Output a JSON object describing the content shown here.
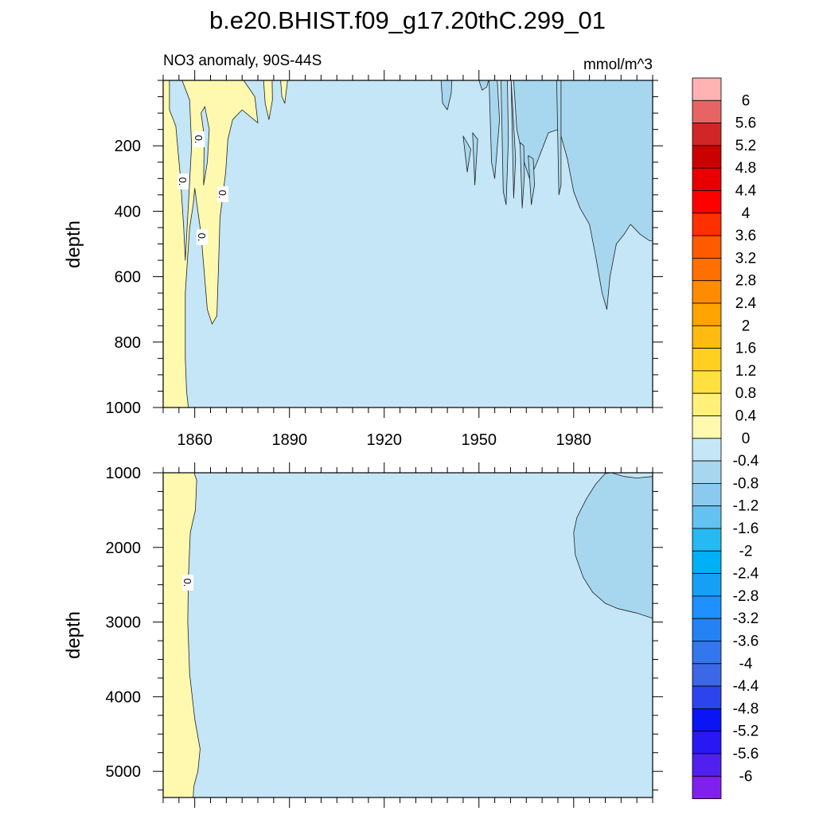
{
  "figure": {
    "title": "b.e20.BHIST.f09_g17.20thC.299_01"
  },
  "chart_data": [
    {
      "type": "heatmap",
      "panel": "upper",
      "title": "NO3 anomaly, 90S-44S",
      "units": "mmol/m^3",
      "ylabel": "depth",
      "xlabel": "",
      "xlim": [
        1850,
        2005
      ],
      "ylim": [
        1000,
        0
      ],
      "y_reversed": true,
      "x_ticks": [
        1860,
        1890,
        1920,
        1950,
        1980
      ],
      "x_tick_labels": [
        "1860",
        "1890",
        "1920",
        "1950",
        "1980"
      ],
      "y_ticks": [
        200,
        400,
        600,
        800,
        1000
      ],
      "y_tick_labels": [
        "200",
        "400",
        "600",
        "800",
        "1000"
      ],
      "contour_labels": [
        "0.",
        "0.",
        "0.",
        "0."
      ],
      "regions": [
        {
          "range": "0 to 0.4",
          "color": "#fff9b0",
          "points": [
            [
              1850,
              0
            ],
            [
              1850,
              1000
            ],
            [
              1858,
              1000
            ],
            [
              1857.4,
              950
            ],
            [
              1857,
              850
            ],
            [
              1857,
              750
            ],
            [
              1857,
              650
            ],
            [
              1857.6,
              560
            ],
            [
              1858.4,
              450
            ],
            [
              1859.5,
              380
            ],
            [
              1860,
              330
            ],
            [
              1862,
              470
            ],
            [
              1864,
              700
            ],
            [
              1865.5,
              745
            ],
            [
              1867,
              720
            ],
            [
              1867.5,
              580
            ],
            [
              1868,
              420
            ],
            [
              1869.8,
              280
            ],
            [
              1870.5,
              180
            ],
            [
              1872,
              120
            ],
            [
              1875,
              90
            ],
            [
              1880,
              130
            ],
            [
              1879,
              50
            ],
            [
              1875.5,
              0
            ]
          ]
        },
        {
          "range": "0 to 0.4",
          "color": "#fff9b0",
          "points": [
            [
              1881.8,
              0
            ],
            [
              1882.3,
              70
            ],
            [
              1883.5,
              120
            ],
            [
              1884.6,
              60
            ],
            [
              1884.5,
              0
            ]
          ]
        },
        {
          "range": "0 to 0.4",
          "color": "#fff9b0",
          "points": [
            [
              1887.2,
              0
            ],
            [
              1887.6,
              50
            ],
            [
              1888.5,
              70
            ],
            [
              1889.4,
              0
            ]
          ]
        },
        {
          "range": "0 to -0.4",
          "color": "#c4e6f6",
          "points": [
            [
              1852,
              0
            ],
            [
              1852,
              90
            ],
            [
              1854,
              140
            ],
            [
              1855.5,
              300
            ],
            [
              1856.5,
              450
            ],
            [
              1857,
              550
            ],
            [
              1858,
              380
            ],
            [
              1859,
              200
            ],
            [
              1858.4,
              60
            ],
            [
              1856,
              0
            ]
          ]
        },
        {
          "range": "0 to -0.4",
          "color": "#c4e6f6",
          "points": [
            [
              1862,
              100
            ],
            [
              1863,
              170
            ],
            [
              1862.8,
              320
            ],
            [
              1864,
              250
            ],
            [
              1864.6,
              150
            ],
            [
              1863.2,
              80
            ]
          ]
        },
        {
          "range": "-0.4 to -0.8",
          "color": "#a7d7ee",
          "points": [
            [
              1961,
              0
            ],
            [
              1962,
              150
            ],
            [
              1964,
              240
            ],
            [
              1966,
              300
            ],
            [
              1968,
              260
            ],
            [
              1970,
              210
            ],
            [
              1972,
              160
            ],
            [
              1975,
              150
            ],
            [
              1976,
              170
            ],
            [
              1978,
              240
            ],
            [
              1979,
              290
            ],
            [
              1980,
              340
            ],
            [
              1982,
              390
            ],
            [
              1985,
              440
            ],
            [
              1987,
              540
            ],
            [
              1989,
              650
            ],
            [
              1990.5,
              700
            ],
            [
              1991.5,
              600
            ],
            [
              1993.5,
              500
            ],
            [
              1996,
              470
            ],
            [
              1998,
              440
            ],
            [
              2001,
              470
            ],
            [
              2004,
              490
            ],
            [
              2005,
              490
            ],
            [
              2005,
              0
            ]
          ]
        },
        {
          "range": "-0.4 to -0.8",
          "color": "#a7d7ee",
          "points": [
            [
              1938,
              0
            ],
            [
              1938.5,
              70
            ],
            [
              1940,
              90
            ],
            [
              1941.2,
              40
            ],
            [
              1941.4,
              0
            ]
          ]
        },
        {
          "range": "-0.4 to -0.8",
          "color": "#a7d7ee",
          "points": [
            [
              1950,
              0
            ],
            [
              1951,
              30
            ],
            [
              1952.5,
              20
            ],
            [
              1953,
              0
            ]
          ]
        },
        {
          "range": "-0.4 to -0.8",
          "color": "#a7d7ee",
          "points": [
            [
              1945,
              170
            ],
            [
              1946.3,
              280
            ],
            [
              1947.4,
              210
            ]
          ]
        },
        {
          "range": "-0.4 to -0.8",
          "color": "#a7d7ee",
          "points": [
            [
              1948,
              160
            ],
            [
              1948.7,
              320
            ],
            [
              1949.6,
              180
            ]
          ]
        },
        {
          "range": "-0.4 to -0.8",
          "color": "#a7d7ee",
          "points": [
            [
              1953.2,
              0
            ],
            [
              1954,
              250
            ],
            [
              1955,
              300
            ],
            [
              1956.5,
              120
            ],
            [
              1955.8,
              0
            ]
          ]
        },
        {
          "range": "-0.4 to -0.8",
          "color": "#a7d7ee",
          "points": [
            [
              1957,
              0
            ],
            [
              1957.7,
              340
            ],
            [
              1958.6,
              380
            ],
            [
              1959.3,
              180
            ],
            [
              1959,
              0
            ]
          ]
        },
        {
          "range": "-0.4 to -0.8",
          "color": "#a7d7ee",
          "points": [
            [
              1960.2,
              0
            ],
            [
              1961,
              360
            ],
            [
              1961.6,
              240
            ]
          ]
        },
        {
          "range": "-0.4 to -0.8",
          "color": "#a7d7ee",
          "points": [
            [
              1963,
              190
            ],
            [
              1963.7,
              390
            ],
            [
              1964.4,
              290
            ],
            [
              1964.2,
              200
            ]
          ]
        },
        {
          "range": "-0.4 to -0.8",
          "color": "#a7d7ee",
          "points": [
            [
              1965.6,
              230
            ],
            [
              1966.6,
              380
            ],
            [
              1967.6,
              320
            ],
            [
              1967.2,
              240
            ]
          ]
        },
        {
          "range": "-0.4 to -0.8",
          "color": "#a7d7ee",
          "points": [
            [
              1974.6,
              0
            ],
            [
              1975.3,
              350
            ],
            [
              1976,
              320
            ],
            [
              1976,
              0
            ]
          ]
        }
      ]
    },
    {
      "type": "heatmap",
      "panel": "lower",
      "ylabel": "depth",
      "xlabel": "",
      "xlim": [
        1850,
        2005
      ],
      "ylim": [
        5350,
        1000
      ],
      "y_reversed": true,
      "y_ticks": [
        1000,
        2000,
        3000,
        4000,
        5000
      ],
      "y_tick_labels": [
        "1000",
        "2000",
        "3000",
        "4000",
        "5000"
      ],
      "contour_labels": [
        "0."
      ],
      "regions": [
        {
          "range": "0 to 0.4",
          "color": "#fff9b0",
          "points": [
            [
              1850,
              1000
            ],
            [
              1850,
              5350
            ],
            [
              1859.5,
              5350
            ],
            [
              1859.7,
              5200
            ],
            [
              1861,
              5000
            ],
            [
              1861.7,
              4700
            ],
            [
              1860,
              4300
            ],
            [
              1858.4,
              3700
            ],
            [
              1857.8,
              3000
            ],
            [
              1858,
              2400
            ],
            [
              1858.6,
              1800
            ],
            [
              1860.2,
              1500
            ],
            [
              1860.6,
              1100
            ],
            [
              1859.8,
              1000
            ]
          ]
        },
        {
          "range": "-0.4 to -0.8",
          "color": "#a7d7ee",
          "points": [
            [
              1980,
              1800
            ],
            [
              1980.5,
              2100
            ],
            [
              1983,
              2400
            ],
            [
              1986,
              2600
            ],
            [
              1990,
              2750
            ],
            [
              1994,
              2820
            ],
            [
              2000,
              2880
            ],
            [
              2005,
              2950
            ],
            [
              2005,
              1050
            ],
            [
              2000,
              1070
            ],
            [
              1996,
              1050
            ],
            [
              1992,
              1000
            ],
            [
              1990,
              1010
            ],
            [
              1987,
              1150
            ],
            [
              1984,
              1350
            ],
            [
              1981,
              1600
            ]
          ]
        }
      ]
    },
    {
      "type": "colorbar",
      "labels": [
        "6",
        "5.6",
        "5.2",
        "4.8",
        "4.4",
        "4",
        "3.6",
        "3.2",
        "2.8",
        "2.4",
        "2",
        "1.6",
        "1.2",
        "0.8",
        "0.4",
        "0",
        "-0.4",
        "-0.8",
        "-1.2",
        "-1.6",
        "-2",
        "-2.4",
        "-2.8",
        "-3.2",
        "-3.6",
        "-4",
        "-4.4",
        "-4.8",
        "-5.2",
        "-5.6",
        "-6"
      ],
      "colors": [
        "#ffb3b3",
        "#e86464",
        "#d22626",
        "#cc0000",
        "#e80000",
        "#ff0000",
        "#ff3000",
        "#ff5a00",
        "#ff7000",
        "#ff8c00",
        "#ffa400",
        "#ffbb10",
        "#ffd020",
        "#ffe040",
        "#fff07a",
        "#fff9b0",
        "#c4e6f6",
        "#a7d7ee",
        "#8ccaed",
        "#63c2f1",
        "#27b9f1",
        "#00b0f6",
        "#16a0f5",
        "#1e90ff",
        "#2482f2",
        "#3476eb",
        "#3c68e5",
        "#2c44ee",
        "#0a14f5",
        "#2a18f2",
        "#5020f0",
        "#8020ef"
      ]
    }
  ]
}
